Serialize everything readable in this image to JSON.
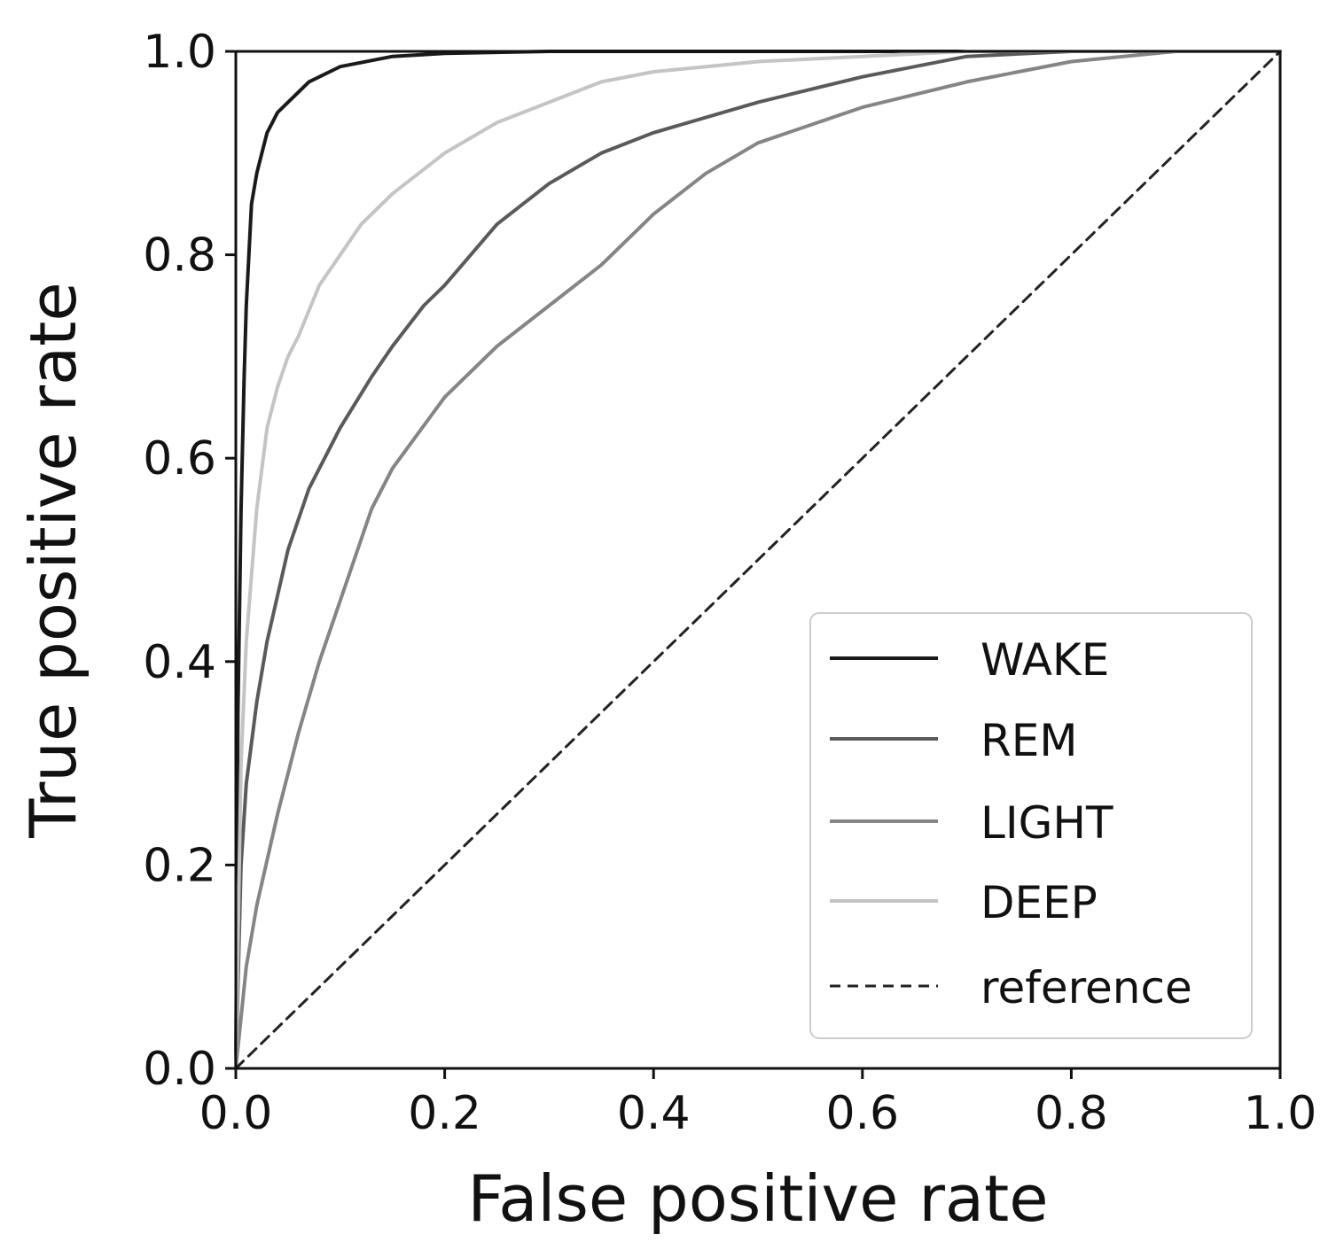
{
  "chart_data": {
    "type": "line",
    "title": "",
    "xlabel": "False positive rate",
    "ylabel": "True positive rate",
    "xlim": [
      0.0,
      1.0
    ],
    "ylim": [
      0.0,
      1.0
    ],
    "xticks": [
      "0.0",
      "0.2",
      "0.4",
      "0.6",
      "0.8",
      "1.0"
    ],
    "yticks": [
      "0.0",
      "0.2",
      "0.4",
      "0.6",
      "0.8",
      "1.0"
    ],
    "grid": false,
    "legend_position": "bottom-right",
    "series": [
      {
        "name": "WAKE",
        "color": "#1a1a1a",
        "dash": "solid",
        "x": [
          0.0,
          0.002,
          0.005,
          0.008,
          0.01,
          0.015,
          0.02,
          0.025,
          0.03,
          0.04,
          0.05,
          0.07,
          0.1,
          0.15,
          0.2,
          0.3,
          0.5,
          1.0
        ],
        "y": [
          0.0,
          0.35,
          0.55,
          0.68,
          0.75,
          0.85,
          0.88,
          0.9,
          0.92,
          0.94,
          0.95,
          0.97,
          0.985,
          0.995,
          0.998,
          1.0,
          1.0,
          1.0
        ]
      },
      {
        "name": "REM",
        "color": "#5a5a5a",
        "dash": "solid",
        "x": [
          0.0,
          0.005,
          0.01,
          0.02,
          0.03,
          0.05,
          0.07,
          0.1,
          0.13,
          0.15,
          0.18,
          0.2,
          0.25,
          0.3,
          0.35,
          0.4,
          0.5,
          0.6,
          0.7,
          0.8,
          0.9,
          1.0
        ],
        "y": [
          0.0,
          0.2,
          0.28,
          0.36,
          0.42,
          0.51,
          0.57,
          0.63,
          0.68,
          0.71,
          0.75,
          0.77,
          0.83,
          0.87,
          0.9,
          0.92,
          0.95,
          0.975,
          0.995,
          1.0,
          1.0,
          1.0
        ]
      },
      {
        "name": "LIGHT",
        "color": "#858585",
        "dash": "solid",
        "x": [
          0.0,
          0.01,
          0.02,
          0.04,
          0.06,
          0.08,
          0.1,
          0.13,
          0.15,
          0.2,
          0.25,
          0.3,
          0.35,
          0.4,
          0.45,
          0.5,
          0.6,
          0.7,
          0.8,
          0.9,
          1.0
        ],
        "y": [
          0.0,
          0.1,
          0.16,
          0.25,
          0.33,
          0.4,
          0.46,
          0.55,
          0.59,
          0.66,
          0.71,
          0.75,
          0.79,
          0.84,
          0.88,
          0.91,
          0.945,
          0.97,
          0.99,
          1.0,
          1.0
        ]
      },
      {
        "name": "DEEP",
        "color": "#c4c4c4",
        "dash": "solid",
        "x": [
          0.0,
          0.005,
          0.01,
          0.02,
          0.03,
          0.04,
          0.05,
          0.06,
          0.08,
          0.1,
          0.12,
          0.15,
          0.2,
          0.25,
          0.3,
          0.35,
          0.4,
          0.5,
          0.6,
          0.7,
          1.0
        ],
        "y": [
          0.0,
          0.3,
          0.42,
          0.55,
          0.63,
          0.67,
          0.7,
          0.72,
          0.77,
          0.8,
          0.83,
          0.86,
          0.9,
          0.93,
          0.95,
          0.97,
          0.98,
          0.99,
          0.995,
          1.0,
          1.0
        ]
      },
      {
        "name": "reference",
        "color": "#222222",
        "dash": "dashed",
        "x": [
          0.0,
          1.0
        ],
        "y": [
          0.0,
          1.0
        ]
      }
    ]
  }
}
